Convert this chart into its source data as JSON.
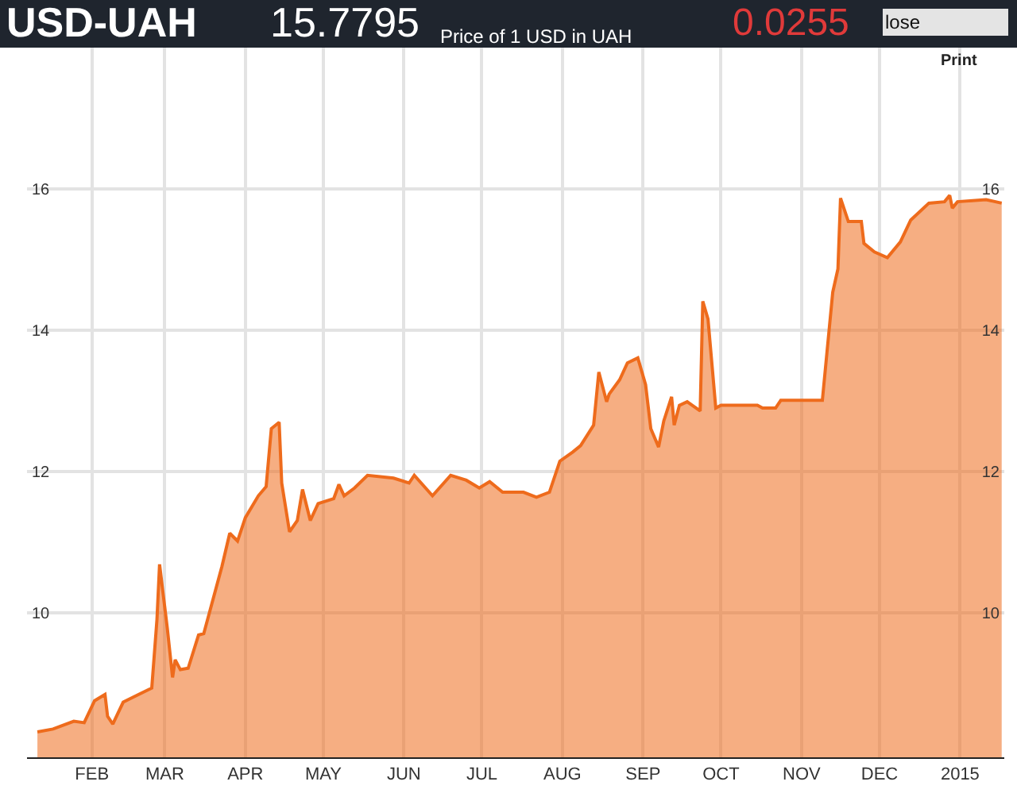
{
  "chart_data": {
    "type": "area",
    "title": "USD-UAH",
    "annotations": [
      "15.7795",
      "Price of 1 USD in UAH",
      "0.0255",
      "lose",
      "Print"
    ],
    "x": [
      "2014-01-11",
      "2014-01-17",
      "2014-01-25",
      "2014-01-29",
      "2014-02-02",
      "2014-02-06",
      "2014-02-07",
      "2014-02-09",
      "2014-02-13",
      "2014-02-19",
      "2014-02-24",
      "2014-02-26",
      "2014-02-27",
      "2014-03-02",
      "2014-03-04",
      "2014-03-05",
      "2014-03-07",
      "2014-03-10",
      "2014-03-14",
      "2014-03-16",
      "2014-03-23",
      "2014-03-26",
      "2014-03-29",
      "2014-04-01",
      "2014-04-06",
      "2014-04-09",
      "2014-04-11",
      "2014-04-14",
      "2014-04-15",
      "2014-04-18",
      "2014-04-21",
      "2014-04-23",
      "2014-04-26",
      "2014-04-29",
      "2014-05-05",
      "2014-05-07",
      "2014-05-09",
      "2014-05-13",
      "2014-05-18",
      "2014-05-28",
      "2014-06-03",
      "2014-06-05",
      "2014-06-12",
      "2014-06-19",
      "2014-06-25",
      "2014-06-30",
      "2014-07-04",
      "2014-07-09",
      "2014-07-17",
      "2014-07-22",
      "2014-07-27",
      "2014-07-31",
      "2014-08-05",
      "2014-08-08",
      "2014-08-13",
      "2014-08-15",
      "2014-08-18",
      "2014-08-19",
      "2014-08-23",
      "2014-08-26",
      "2014-08-30",
      "2014-09-02",
      "2014-09-04",
      "2014-09-07",
      "2014-09-09",
      "2014-09-12",
      "2014-09-13",
      "2014-09-15",
      "2014-09-18",
      "2014-09-23",
      "2014-09-24",
      "2014-09-26",
      "2014-09-29",
      "2014-10-01",
      "2014-10-15",
      "2014-10-17",
      "2014-10-22",
      "2014-10-24",
      "2014-11-09",
      "2014-11-13",
      "2014-11-15",
      "2014-11-16",
      "2014-11-19",
      "2014-11-24",
      "2014-11-25",
      "2014-11-29",
      "2014-12-04",
      "2014-12-09",
      "2014-12-13",
      "2014-12-20",
      "2014-12-26",
      "2014-12-28",
      "2014-12-29",
      "2014-12-31",
      "2015-01-11",
      "2015-01-17"
    ],
    "series": [
      {
        "color": "#ee6b1c",
        "values": [
          8.32,
          8.36,
          8.47,
          8.45,
          8.76,
          8.85,
          8.54,
          8.43,
          8.74,
          8.85,
          8.94,
          9.91,
          10.69,
          9.78,
          9.09,
          9.34,
          9.2,
          9.22,
          9.69,
          9.71,
          10.66,
          11.13,
          11.02,
          11.35,
          11.66,
          11.79,
          12.61,
          12.7,
          11.84,
          11.15,
          11.31,
          11.75,
          11.31,
          11.55,
          11.62,
          11.82,
          11.66,
          11.77,
          11.95,
          11.91,
          11.84,
          11.95,
          11.66,
          11.95,
          11.88,
          11.77,
          11.86,
          11.71,
          11.71,
          11.64,
          11.71,
          12.15,
          12.28,
          12.37,
          12.66,
          13.41,
          12.99,
          13.1,
          13.3,
          13.54,
          13.61,
          13.23,
          12.61,
          12.35,
          12.72,
          13.06,
          12.66,
          12.94,
          12.99,
          12.86,
          14.41,
          14.16,
          12.9,
          12.94,
          12.94,
          12.9,
          12.9,
          13.01,
          13.01,
          14.54,
          14.87,
          15.87,
          15.54,
          15.54,
          15.23,
          15.11,
          15.03,
          15.25,
          15.56,
          15.8,
          15.82,
          15.91,
          15.73,
          15.82,
          15.85,
          15.8
        ]
      }
    ],
    "xlim": [
      "2014-01-07",
      "2015-01-18"
    ],
    "xticks": [
      {
        "value": "2014-02-01",
        "label": "FEB"
      },
      {
        "value": "2014-03-01",
        "label": "MAR"
      },
      {
        "value": "2014-04-01",
        "label": "APR"
      },
      {
        "value": "2014-05-01",
        "label": "MAY"
      },
      {
        "value": "2014-06-01",
        "label": "JUN"
      },
      {
        "value": "2014-07-01",
        "label": "JUL"
      },
      {
        "value": "2014-08-01",
        "label": "AUG"
      },
      {
        "value": "2014-09-01",
        "label": "SEP"
      },
      {
        "value": "2014-10-01",
        "label": "OCT"
      },
      {
        "value": "2014-11-01",
        "label": "NOV"
      },
      {
        "value": "2014-12-01",
        "label": "DEC"
      },
      {
        "value": "2015-01-01",
        "label": "2015"
      }
    ],
    "ylim": [
      7.96,
      18.0
    ],
    "yticks": [
      10,
      12,
      14,
      16
    ],
    "y2lim": [
      7.96,
      18.0
    ],
    "y2ticks": [
      10,
      12,
      14,
      16
    ],
    "grid": true
  }
}
